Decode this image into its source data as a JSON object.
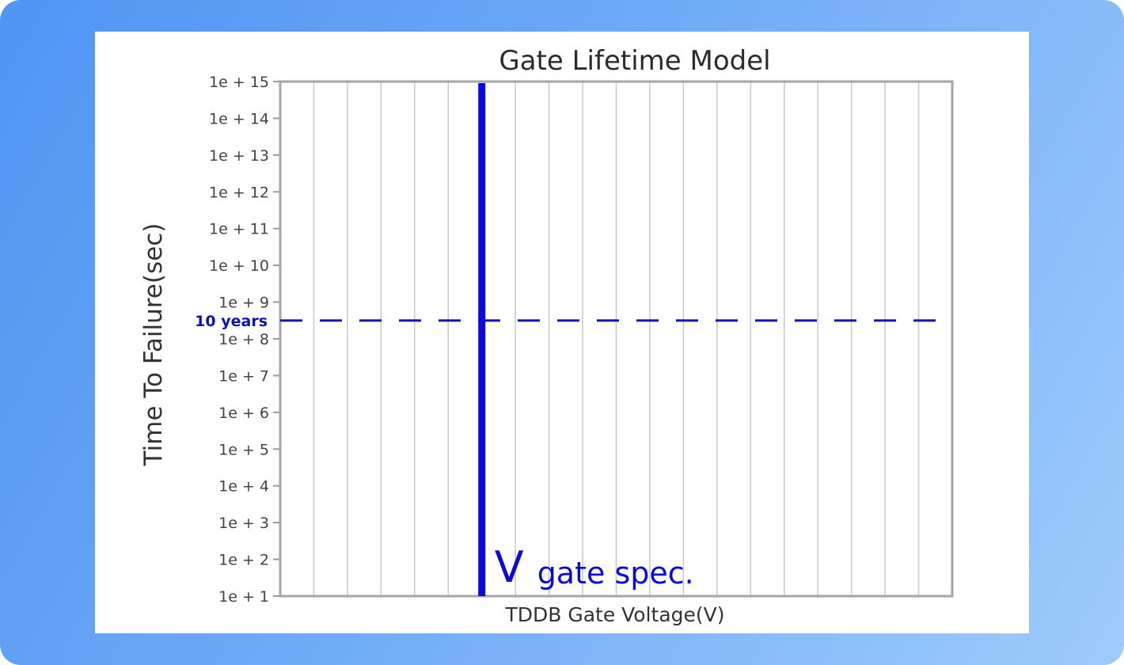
{
  "chart_data": {
    "type": "line",
    "title": "Gate Lifetime Model",
    "xlabel": "TDDB Gate Voltage(V)",
    "ylabel": "Time To Failure(sec)",
    "yscale": "log",
    "ylim_exp": [
      1,
      15
    ],
    "yticks": [
      "1e + 1",
      "1e + 2",
      "1e + 3",
      "1e + 4",
      "1e + 5",
      "1e + 6",
      "1e + 7",
      "1e + 8",
      "1e + 9",
      "1e + 10",
      "1e + 11",
      "1e + 12",
      "1e + 13",
      "1e + 14",
      "1e + 15"
    ],
    "vertical_grid_divisions": 20,
    "reference_lines": {
      "horizontal": {
        "label": "10 years",
        "value_sec": 315360000,
        "color": "#1414b4",
        "style": "dashed"
      },
      "vertical": {
        "label_main": "V",
        "label_sub": "gate spec.",
        "x_fraction": 0.3,
        "color": "#0a0ae0"
      }
    }
  }
}
